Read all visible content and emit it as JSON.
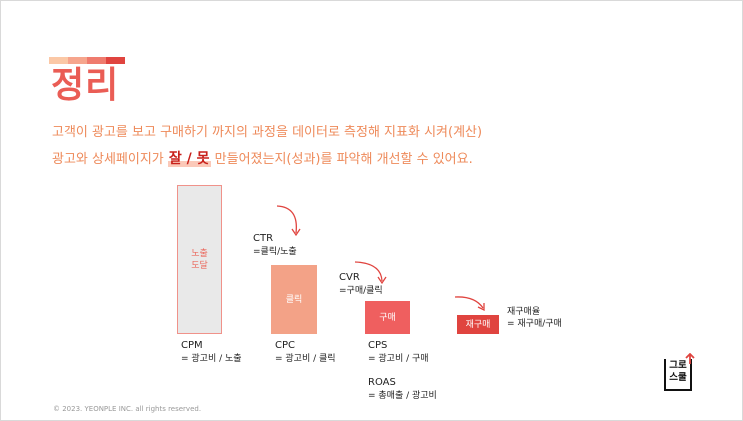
{
  "header": {
    "title": "정리",
    "stripe_colors": [
      "#fbc8a6",
      "#f6a58d",
      "#ef7b6e",
      "#e0443f"
    ]
  },
  "body": {
    "line1": "고객이 광고를 보고 구매하기 까지의 과정을 데이터로 측정해 지표화 시켜(계산)",
    "line2_before": "광고와 상세페이지가 ",
    "line2_highlight": "잘 / 못",
    "line2_after": " 만들어졌는지(성과)를 파악해 개선할 수 있어요."
  },
  "funnel": {
    "exposure_box": {
      "line1": "노출",
      "line2": "도달"
    },
    "click_box": "클릭",
    "purchase_box": "구매",
    "repurchase_box": "재구매",
    "cpm": {
      "name": "CPM",
      "formula": "= 광고비 / 노출"
    },
    "cpc": {
      "name": "CPC",
      "formula": "= 광고비 / 클릭"
    },
    "cps": {
      "name": "CPS",
      "formula": "= 광고비 / 구매"
    },
    "roas": {
      "name": "ROAS",
      "formula": "= 총매출 / 광고비"
    },
    "ctr": {
      "name": "CTR",
      "formula": "=클릭/노출"
    },
    "cvr": {
      "name": "CVR",
      "formula": "=구매/클릭"
    },
    "repurchase_rate": {
      "name": "재구매율",
      "formula": "= 재구매/구매"
    }
  },
  "footer": {
    "copyright": "© 2023. YEONPLE INC. all rights reserved."
  },
  "logo": {
    "line1": "그로",
    "line2": "스쿨"
  },
  "colors": {
    "accent": "#ea5d55",
    "body_text": "#ee8a5a",
    "arrow": "#e0443f"
  }
}
